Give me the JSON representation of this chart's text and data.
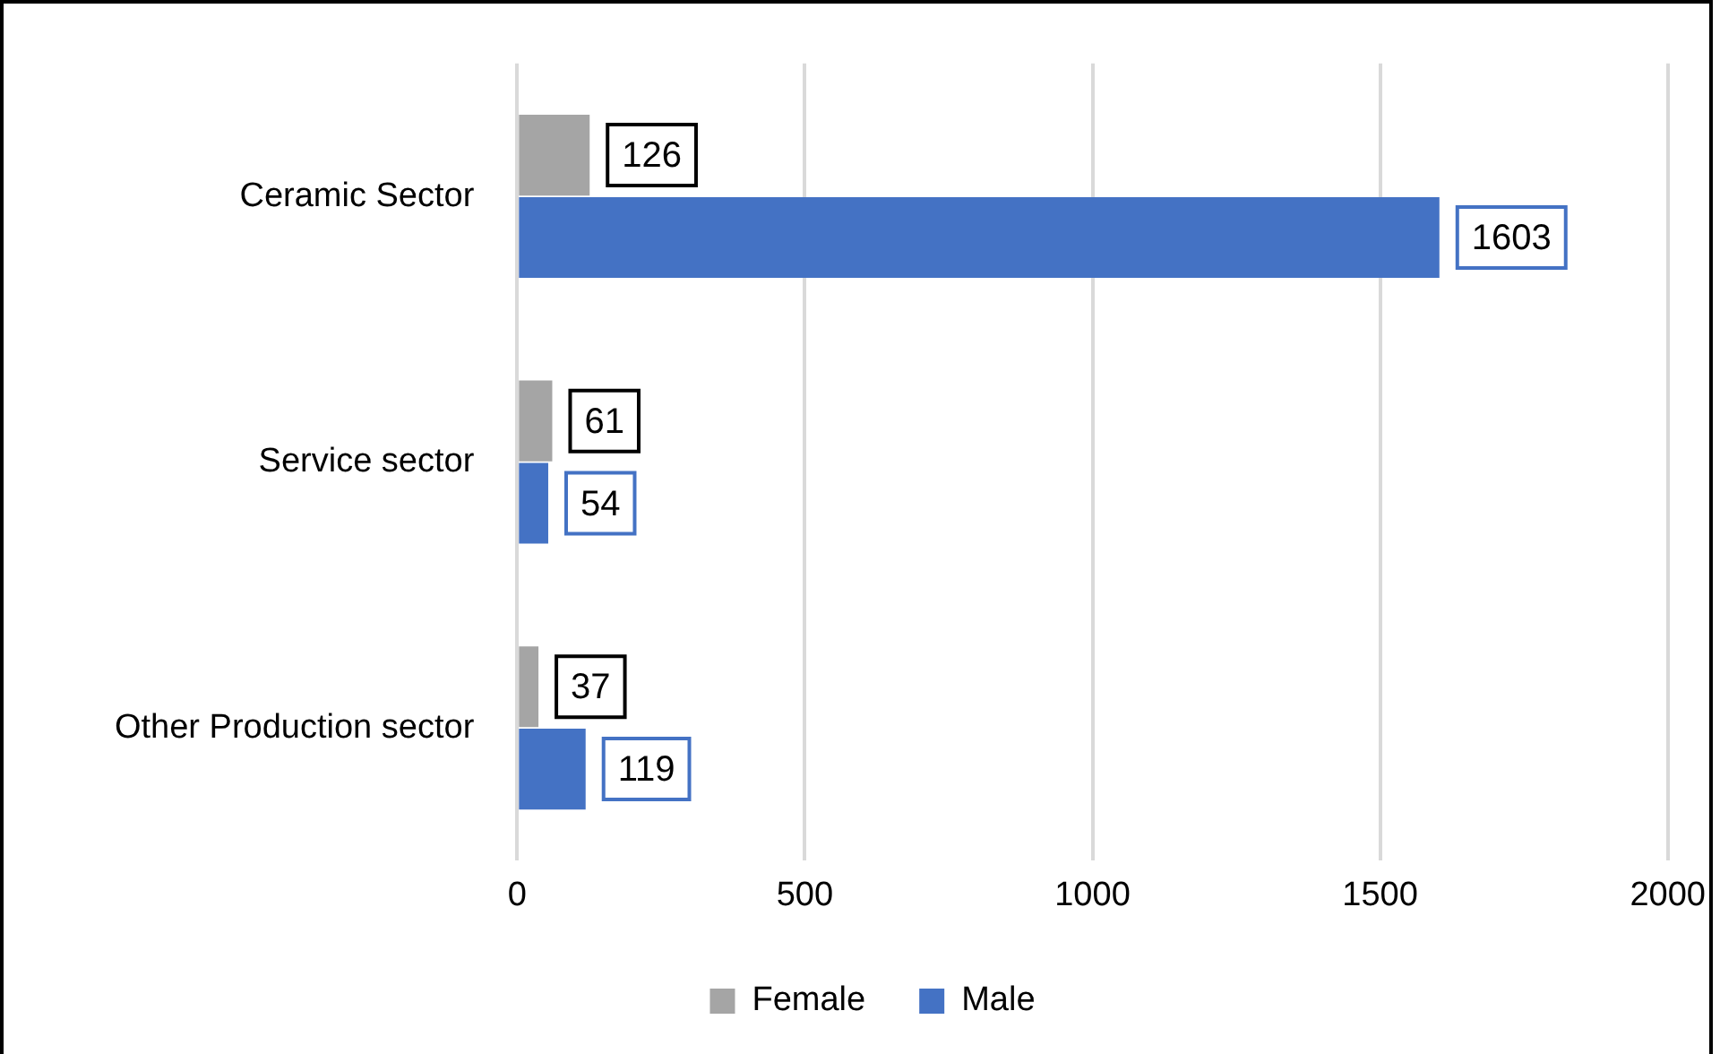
{
  "chart_data": {
    "type": "bar",
    "orientation": "horizontal",
    "categories": [
      "Ceramic Sector",
      "Service sector",
      "Other Production sector"
    ],
    "series": [
      {
        "name": "Female",
        "color": "#a5a5a5",
        "values": [
          126,
          61,
          37
        ]
      },
      {
        "name": "Male",
        "color": "#4472c4",
        "values": [
          1603,
          54,
          119
        ]
      }
    ],
    "xlim": [
      0,
      2000
    ],
    "xticks": [
      0,
      500,
      1000,
      1500,
      2000
    ],
    "grid": "x",
    "legend": "bottom",
    "data_labels": true
  }
}
